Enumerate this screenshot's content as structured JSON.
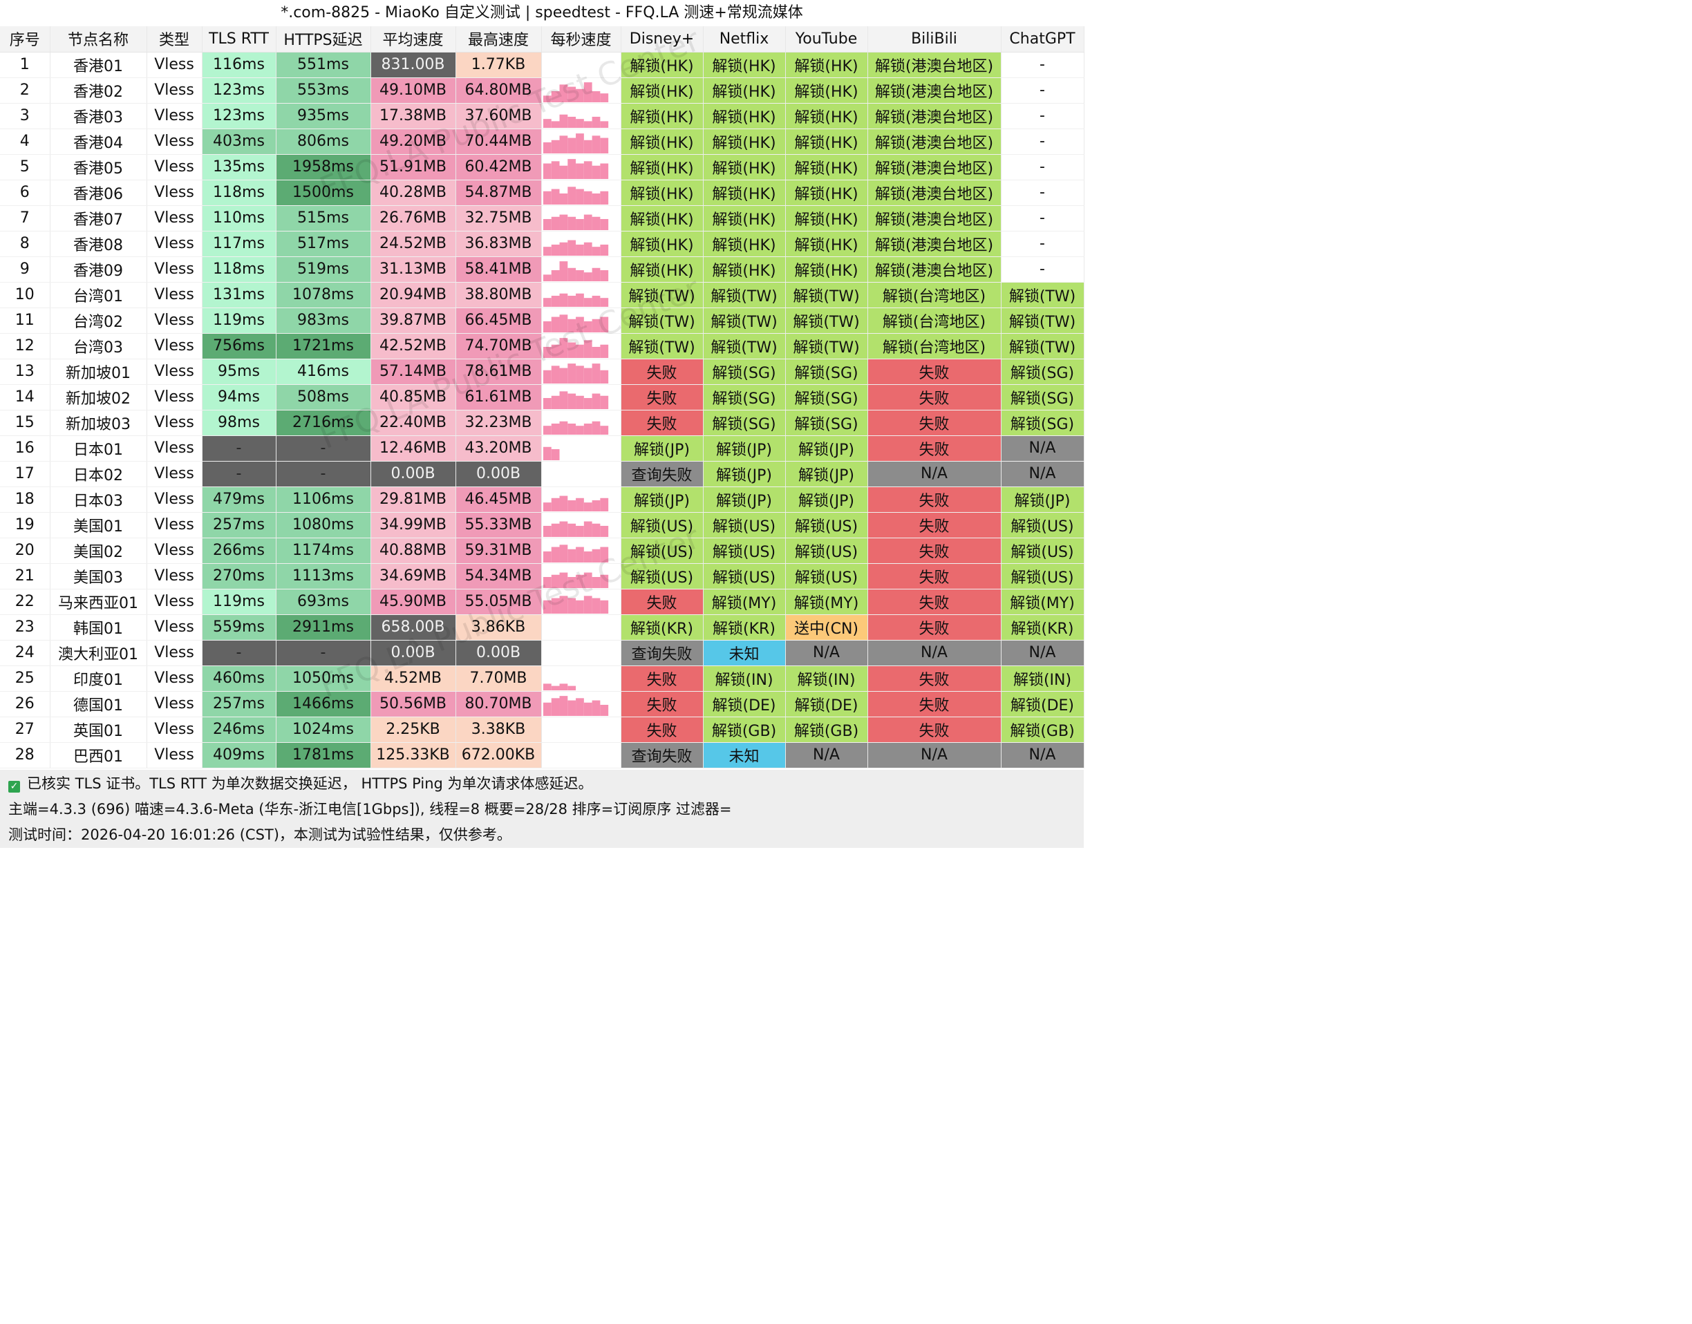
{
  "window": {
    "title": "*.com-8825 - MiaoKo 自定义测试 | speedtest - FFQ.LA 测速+常规流媒体"
  },
  "watermark": "FFQ.LA Public Test Center",
  "colors": {
    "latency_fast": "#b3f5cf",
    "latency_mid": "#8fd6a8",
    "latency_slow": "#5cab73",
    "speed_high": "#f09ab7",
    "speed_mid": "#f6bccb",
    "speed_low": "#fbd6c3",
    "dead": "#636363",
    "unlock": "#b2e16c",
    "fail": "#ea6a6e",
    "na": "#8c8c8c",
    "unknown": "#56c7e8",
    "pending": "#fcc979",
    "spark": "#f58eb0"
  },
  "columns": [
    "序号",
    "节点名称",
    "类型",
    "TLS RTT",
    "HTTPS延迟",
    "平均速度",
    "最高速度",
    "每秒速度",
    "Disney+",
    "Netflix",
    "YouTube",
    "BiliBili",
    "ChatGPT"
  ],
  "rows": [
    {
      "idx": "1",
      "name": "香港01",
      "type": "Vless",
      "tls": "116ms",
      "https": "551ms",
      "avg": "831.00B",
      "max": "1.77KB",
      "spark": [],
      "disney": "解锁(HK)",
      "netflix": "解锁(HK)",
      "youtube": "解锁(HK)",
      "bili": "解锁(港澳台地区)",
      "gpt": "-"
    },
    {
      "idx": "2",
      "name": "香港02",
      "type": "Vless",
      "tls": "123ms",
      "https": "553ms",
      "avg": "49.10MB",
      "max": "64.80MB",
      "spark": [
        0.3,
        0.5,
        0.8,
        0.7,
        0.6,
        0.9,
        0.5,
        0.4
      ],
      "disney": "解锁(HK)",
      "netflix": "解锁(HK)",
      "youtube": "解锁(HK)",
      "bili": "解锁(港澳台地区)",
      "gpt": "-"
    },
    {
      "idx": "3",
      "name": "香港03",
      "type": "Vless",
      "tls": "123ms",
      "https": "935ms",
      "avg": "17.38MB",
      "max": "37.60MB",
      "spark": [
        0.4,
        0.3,
        0.6,
        0.5,
        0.4,
        0.3,
        0.5,
        0.3
      ],
      "disney": "解锁(HK)",
      "netflix": "解锁(HK)",
      "youtube": "解锁(HK)",
      "bili": "解锁(港澳台地区)",
      "gpt": "-"
    },
    {
      "idx": "4",
      "name": "香港04",
      "type": "Vless",
      "tls": "403ms",
      "https": "806ms",
      "avg": "49.20MB",
      "max": "70.44MB",
      "spark": [
        0.5,
        0.6,
        0.8,
        0.7,
        0.9,
        0.6,
        0.8,
        0.7
      ],
      "disney": "解锁(HK)",
      "netflix": "解锁(HK)",
      "youtube": "解锁(HK)",
      "bili": "解锁(港澳台地区)",
      "gpt": "-"
    },
    {
      "idx": "5",
      "name": "香港05",
      "type": "Vless",
      "tls": "135ms",
      "https": "1958ms",
      "avg": "51.91MB",
      "max": "60.42MB",
      "spark": [
        0.7,
        0.8,
        0.6,
        0.9,
        0.7,
        0.8,
        0.6,
        0.7
      ],
      "disney": "解锁(HK)",
      "netflix": "解锁(HK)",
      "youtube": "解锁(HK)",
      "bili": "解锁(港澳台地区)",
      "gpt": "-"
    },
    {
      "idx": "6",
      "name": "香港06",
      "type": "Vless",
      "tls": "118ms",
      "https": "1500ms",
      "avg": "40.28MB",
      "max": "54.87MB",
      "spark": [
        0.6,
        0.7,
        0.5,
        0.8,
        0.7,
        0.6,
        0.5,
        0.6
      ],
      "disney": "解锁(HK)",
      "netflix": "解锁(HK)",
      "youtube": "解锁(HK)",
      "bili": "解锁(港澳台地区)",
      "gpt": "-"
    },
    {
      "idx": "7",
      "name": "香港07",
      "type": "Vless",
      "tls": "110ms",
      "https": "515ms",
      "avg": "26.76MB",
      "max": "32.75MB",
      "spark": [
        0.5,
        0.6,
        0.7,
        0.6,
        0.5,
        0.7,
        0.6,
        0.5
      ],
      "disney": "解锁(HK)",
      "netflix": "解锁(HK)",
      "youtube": "解锁(HK)",
      "bili": "解锁(港澳台地区)",
      "gpt": "-"
    },
    {
      "idx": "8",
      "name": "香港08",
      "type": "Vless",
      "tls": "117ms",
      "https": "517ms",
      "avg": "24.52MB",
      "max": "36.83MB",
      "spark": [
        0.4,
        0.5,
        0.6,
        0.7,
        0.5,
        0.6,
        0.4,
        0.5
      ],
      "disney": "解锁(HK)",
      "netflix": "解锁(HK)",
      "youtube": "解锁(HK)",
      "bili": "解锁(港澳台地区)",
      "gpt": "-"
    },
    {
      "idx": "9",
      "name": "香港09",
      "type": "Vless",
      "tls": "118ms",
      "https": "519ms",
      "avg": "31.13MB",
      "max": "58.41MB",
      "spark": [
        0.3,
        0.5,
        0.9,
        0.6,
        0.5,
        0.4,
        0.6,
        0.5
      ],
      "disney": "解锁(HK)",
      "netflix": "解锁(HK)",
      "youtube": "解锁(HK)",
      "bili": "解锁(港澳台地区)",
      "gpt": "-"
    },
    {
      "idx": "10",
      "name": "台湾01",
      "type": "Vless",
      "tls": "131ms",
      "https": "1078ms",
      "avg": "20.94MB",
      "max": "38.80MB",
      "spark": [
        0.4,
        0.5,
        0.6,
        0.5,
        0.6,
        0.4,
        0.5,
        0.4
      ],
      "disney": "解锁(TW)",
      "netflix": "解锁(TW)",
      "youtube": "解锁(TW)",
      "bili": "解锁(台湾地区)",
      "gpt": "解锁(TW)"
    },
    {
      "idx": "11",
      "name": "台湾02",
      "type": "Vless",
      "tls": "119ms",
      "https": "983ms",
      "avg": "39.87MB",
      "max": "66.45MB",
      "spark": [
        0.5,
        0.7,
        0.8,
        0.6,
        0.7,
        0.5,
        0.6,
        0.7
      ],
      "disney": "解锁(TW)",
      "netflix": "解锁(TW)",
      "youtube": "解锁(TW)",
      "bili": "解锁(台湾地区)",
      "gpt": "解锁(TW)"
    },
    {
      "idx": "12",
      "name": "台湾03",
      "type": "Vless",
      "tls": "756ms",
      "https": "1721ms",
      "avg": "42.52MB",
      "max": "74.70MB",
      "spark": [
        0.5,
        0.6,
        0.9,
        0.7,
        0.6,
        0.8,
        0.5,
        0.6
      ],
      "disney": "解锁(TW)",
      "netflix": "解锁(TW)",
      "youtube": "解锁(TW)",
      "bili": "解锁(台湾地区)",
      "gpt": "解锁(TW)"
    },
    {
      "idx": "13",
      "name": "新加坡01",
      "type": "Vless",
      "tls": "95ms",
      "https": "416ms",
      "avg": "57.14MB",
      "max": "78.61MB",
      "spark": [
        0.6,
        0.8,
        0.7,
        0.9,
        0.8,
        0.7,
        0.9,
        0.6
      ],
      "disney": "失败",
      "netflix": "解锁(SG)",
      "youtube": "解锁(SG)",
      "bili": "失败",
      "gpt": "解锁(SG)"
    },
    {
      "idx": "14",
      "name": "新加坡02",
      "type": "Vless",
      "tls": "94ms",
      "https": "508ms",
      "avg": "40.85MB",
      "max": "61.61MB",
      "spark": [
        0.5,
        0.6,
        0.8,
        0.7,
        0.6,
        0.5,
        0.7,
        0.6
      ],
      "disney": "失败",
      "netflix": "解锁(SG)",
      "youtube": "解锁(SG)",
      "bili": "失败",
      "gpt": "解锁(SG)"
    },
    {
      "idx": "15",
      "name": "新加坡03",
      "type": "Vless",
      "tls": "98ms",
      "https": "2716ms",
      "avg": "22.40MB",
      "max": "32.23MB",
      "spark": [
        0.4,
        0.5,
        0.6,
        0.5,
        0.4,
        0.5,
        0.6,
        0.4
      ],
      "disney": "失败",
      "netflix": "解锁(SG)",
      "youtube": "解锁(SG)",
      "bili": "失败",
      "gpt": "解锁(SG)"
    },
    {
      "idx": "16",
      "name": "日本01",
      "type": "Vless",
      "tls": "-",
      "https": "-",
      "avg": "12.46MB",
      "max": "43.20MB",
      "spark": [
        0.6,
        0.5
      ],
      "disney": "解锁(JP)",
      "netflix": "解锁(JP)",
      "youtube": "解锁(JP)",
      "bili": "失败",
      "gpt": "N/A"
    },
    {
      "idx": "17",
      "name": "日本02",
      "type": "Vless",
      "tls": "-",
      "https": "-",
      "avg": "0.00B",
      "max": "0.00B",
      "spark": [],
      "disney": "查询失败",
      "netflix": "解锁(JP)",
      "youtube": "解锁(JP)",
      "bili": "N/A",
      "gpt": "N/A"
    },
    {
      "idx": "18",
      "name": "日本03",
      "type": "Vless",
      "tls": "479ms",
      "https": "1106ms",
      "avg": "29.81MB",
      "max": "46.45MB",
      "spark": [
        0.4,
        0.6,
        0.7,
        0.5,
        0.6,
        0.4,
        0.5,
        0.6
      ],
      "disney": "解锁(JP)",
      "netflix": "解锁(JP)",
      "youtube": "解锁(JP)",
      "bili": "失败",
      "gpt": "解锁(JP)"
    },
    {
      "idx": "19",
      "name": "美国01",
      "type": "Vless",
      "tls": "257ms",
      "https": "1080ms",
      "avg": "34.99MB",
      "max": "55.33MB",
      "spark": [
        0.5,
        0.6,
        0.7,
        0.6,
        0.5,
        0.7,
        0.6,
        0.5
      ],
      "disney": "解锁(US)",
      "netflix": "解锁(US)",
      "youtube": "解锁(US)",
      "bili": "失败",
      "gpt": "解锁(US)"
    },
    {
      "idx": "20",
      "name": "美国02",
      "type": "Vless",
      "tls": "266ms",
      "https": "1174ms",
      "avg": "40.88MB",
      "max": "59.31MB",
      "spark": [
        0.5,
        0.7,
        0.8,
        0.6,
        0.7,
        0.5,
        0.6,
        0.7
      ],
      "disney": "解锁(US)",
      "netflix": "解锁(US)",
      "youtube": "解锁(US)",
      "bili": "失败",
      "gpt": "解锁(US)"
    },
    {
      "idx": "21",
      "name": "美国03",
      "type": "Vless",
      "tls": "270ms",
      "https": "1113ms",
      "avg": "34.69MB",
      "max": "54.34MB",
      "spark": [
        0.5,
        0.6,
        0.7,
        0.5,
        0.6,
        0.7,
        0.5,
        0.6
      ],
      "disney": "解锁(US)",
      "netflix": "解锁(US)",
      "youtube": "解锁(US)",
      "bili": "失败",
      "gpt": "解锁(US)"
    },
    {
      "idx": "22",
      "name": "马来西亚01",
      "type": "Vless",
      "tls": "119ms",
      "https": "693ms",
      "avg": "45.90MB",
      "max": "55.05MB",
      "spark": [
        0.6,
        0.7,
        0.8,
        0.7,
        0.6,
        0.8,
        0.7,
        0.6
      ],
      "disney": "失败",
      "netflix": "解锁(MY)",
      "youtube": "解锁(MY)",
      "bili": "失败",
      "gpt": "解锁(MY)"
    },
    {
      "idx": "23",
      "name": "韩国01",
      "type": "Vless",
      "tls": "559ms",
      "https": "2911ms",
      "avg": "658.00B",
      "max": "3.86KB",
      "spark": [],
      "disney": "解锁(KR)",
      "netflix": "解锁(KR)",
      "youtube": "送中(CN)",
      "bili": "失败",
      "gpt": "解锁(KR)"
    },
    {
      "idx": "24",
      "name": "澳大利亚01",
      "type": "Vless",
      "tls": "-",
      "https": "-",
      "avg": "0.00B",
      "max": "0.00B",
      "spark": [],
      "disney": "查询失败",
      "netflix": "未知",
      "youtube": "N/A",
      "bili": "N/A",
      "gpt": "N/A"
    },
    {
      "idx": "25",
      "name": "印度01",
      "type": "Vless",
      "tls": "460ms",
      "https": "1050ms",
      "avg": "4.52MB",
      "max": "7.70MB",
      "spark": [
        0.3,
        0.2,
        0.3,
        0.2
      ],
      "disney": "失败",
      "netflix": "解锁(IN)",
      "youtube": "解锁(IN)",
      "bili": "失败",
      "gpt": "解锁(IN)"
    },
    {
      "idx": "26",
      "name": "德国01",
      "type": "Vless",
      "tls": "257ms",
      "https": "1466ms",
      "avg": "50.56MB",
      "max": "80.70MB",
      "spark": [
        0.6,
        0.8,
        0.9,
        0.7,
        0.8,
        0.6,
        0.7,
        0.5
      ],
      "disney": "失败",
      "netflix": "解锁(DE)",
      "youtube": "解锁(DE)",
      "bili": "失败",
      "gpt": "解锁(DE)"
    },
    {
      "idx": "27",
      "name": "英国01",
      "type": "Vless",
      "tls": "246ms",
      "https": "1024ms",
      "avg": "2.25KB",
      "max": "3.38KB",
      "spark": [],
      "disney": "失败",
      "netflix": "解锁(GB)",
      "youtube": "解锁(GB)",
      "bili": "失败",
      "gpt": "解锁(GB)"
    },
    {
      "idx": "28",
      "name": "巴西01",
      "type": "Vless",
      "tls": "409ms",
      "https": "1781ms",
      "avg": "125.33KB",
      "max": "672.00KB",
      "spark": [],
      "disney": "查询失败",
      "netflix": "未知",
      "youtube": "N/A",
      "bili": "N/A",
      "gpt": "N/A"
    }
  ],
  "footer": {
    "line1": "已核实 TLS 证书。TLS RTT 为单次数据交换延迟， HTTPS Ping 为单次请求体感延迟。",
    "line2": "主端=4.3.3 (696) 喵速=4.3.6-Meta (华东-浙江电信[1Gbps]), 线程=8 概要=28/28 排序=订阅原序 过滤器=",
    "line3": "测试时间：2026-04-20 16:01:26 (CST)，本测试为试验性结果，仅供参考。"
  }
}
